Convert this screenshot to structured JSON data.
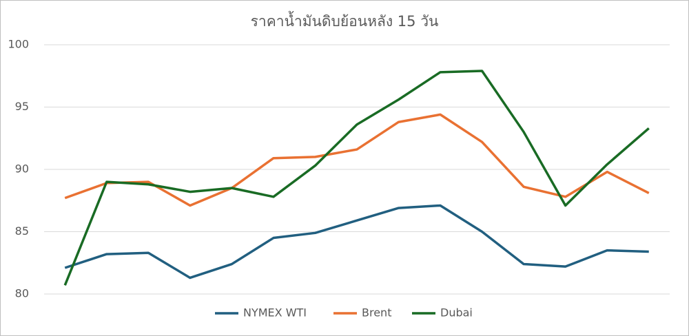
{
  "chart_data": {
    "type": "line",
    "title": "ราคาน้ำมันดิบย้อนหลัง 15 วัน",
    "categories": [
      null,
      null,
      null,
      null,
      null,
      null,
      null,
      null,
      null,
      null,
      null,
      null,
      null,
      null,
      null
    ],
    "series": [
      {
        "name": "NYMEX WTI",
        "color": "#215f80",
        "values": [
          82.1,
          83.2,
          83.3,
          81.3,
          82.4,
          84.5,
          84.9,
          85.9,
          86.9,
          87.1,
          85.0,
          82.4,
          82.2,
          83.5,
          83.4
        ]
      },
      {
        "name": "Brent",
        "color": "#e97132",
        "values": [
          87.7,
          88.9,
          89.0,
          87.1,
          88.5,
          90.9,
          91.0,
          91.6,
          93.8,
          94.4,
          92.2,
          88.6,
          87.8,
          89.8,
          88.1
        ]
      },
      {
        "name": "Dubai",
        "color": "#196b24",
        "values": [
          80.7,
          89.0,
          88.8,
          88.2,
          88.5,
          87.8,
          90.3,
          93.6,
          95.6,
          97.8,
          97.9,
          93.0,
          87.1,
          90.4,
          93.3
        ]
      }
    ],
    "ylim": [
      80,
      100
    ],
    "yticks": [
      80,
      85,
      90,
      95,
      100
    ],
    "grid": true,
    "legend": "bottom"
  }
}
